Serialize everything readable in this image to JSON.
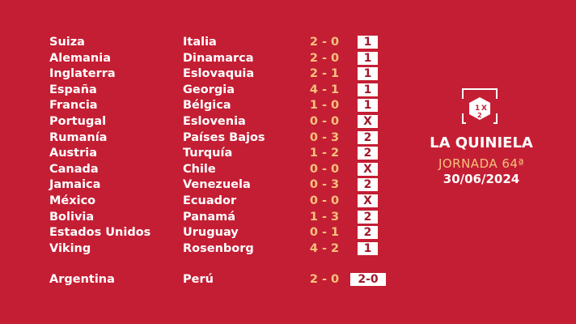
{
  "matches": [
    {
      "home": "Suiza",
      "away": "Italia",
      "score": "2 - 0",
      "sign": "1"
    },
    {
      "home": "Alemania",
      "away": "Dinamarca",
      "score": "2 - 0",
      "sign": "1"
    },
    {
      "home": "Inglaterra",
      "away": "Eslovaquia",
      "score": "2 - 1",
      "sign": "1"
    },
    {
      "home": "España",
      "away": "Georgia",
      "score": "4 - 1",
      "sign": "1"
    },
    {
      "home": "Francia",
      "away": "Bélgica",
      "score": "1 - 0",
      "sign": "1"
    },
    {
      "home": "Portugal",
      "away": "Eslovenia",
      "score": "0 - 0",
      "sign": "X"
    },
    {
      "home": "Rumanía",
      "away": "Países Bajos",
      "score": "0 - 3",
      "sign": "2"
    },
    {
      "home": "Austria",
      "away": "Turquía",
      "score": "1 - 2",
      "sign": "2"
    },
    {
      "home": "Canada",
      "away": "Chile",
      "score": "0 - 0",
      "sign": "X"
    },
    {
      "home": "Jamaica",
      "away": "Venezuela",
      "score": "0 - 3",
      "sign": "2"
    },
    {
      "home": "México",
      "away": "Ecuador",
      "score": "0 - 0",
      "sign": "X"
    },
    {
      "home": "Bolivia",
      "away": "Panamá",
      "score": "1 - 3",
      "sign": "2"
    },
    {
      "home": "Estados Unidos",
      "away": "Uruguay",
      "score": "0 - 1",
      "sign": "2"
    },
    {
      "home": "Viking",
      "away": "Rosenborg",
      "score": "4 - 2",
      "sign": "1"
    }
  ],
  "pleno": {
    "home": "Argentina",
    "away": "Perú",
    "score": "2 - 0",
    "sign": "2-0"
  },
  "brand": {
    "logo_text": "1X2",
    "title": "LA QUINIELA",
    "jornada": "JORNADA 64ª",
    "date": "30/06/2024"
  },
  "colors": {
    "background": "#c41e34",
    "score": "#f6c27c",
    "sign_text": "#a3172c"
  }
}
